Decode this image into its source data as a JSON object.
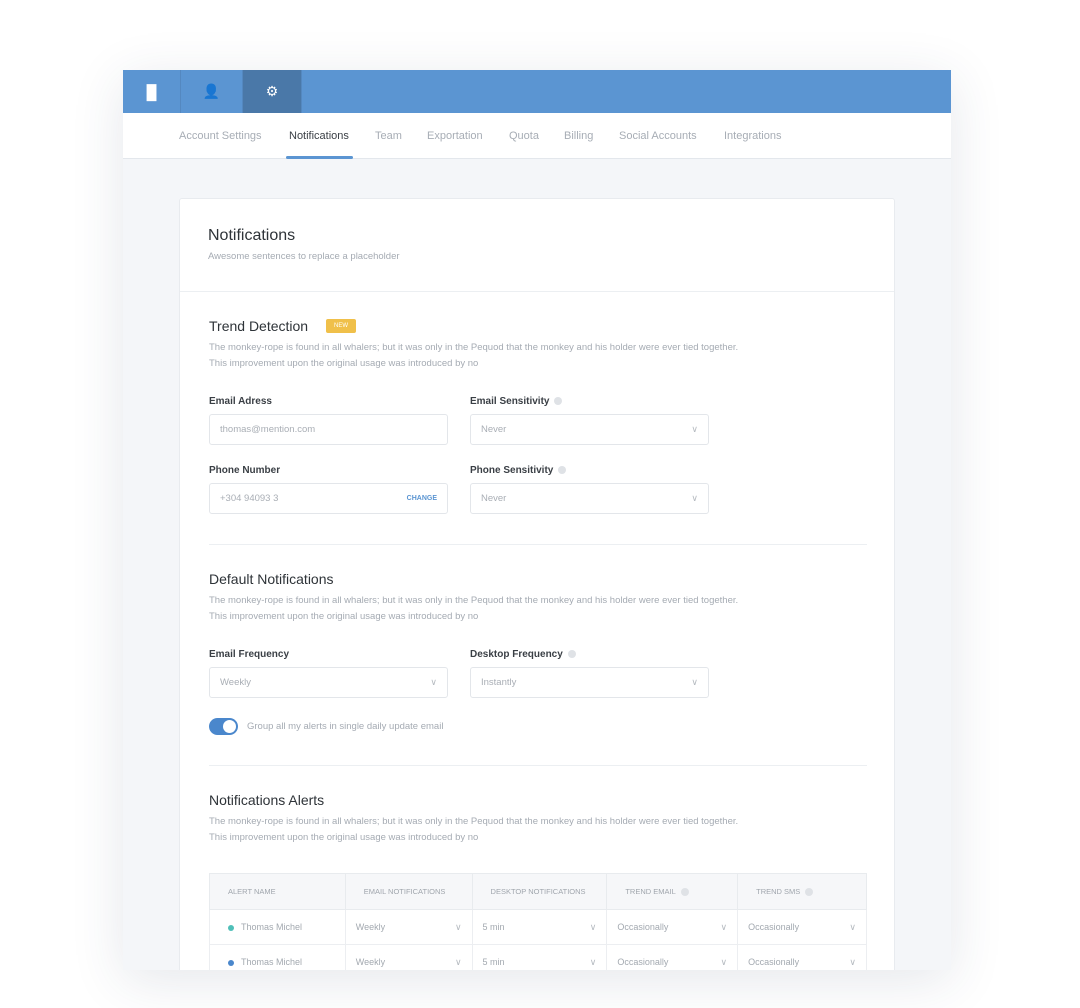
{
  "topbar": {
    "icons": [
      "bar-chart-icon",
      "users-icon",
      "gear-icon"
    ],
    "active": 2,
    "color": "#5b95d2"
  },
  "subnav": {
    "tabs": [
      "Account Settings",
      "Notifications",
      "Team",
      "Exportation",
      "Quota",
      "Billing",
      "Social Accounts",
      "Integrations"
    ],
    "active": 1
  },
  "header": {
    "title": "Notifications",
    "subtitle": "Awesome sentences to replace a placeholder"
  },
  "trend": {
    "title": "Trend Detection",
    "badge": "NEW",
    "desc1": "The monkey-rope is found in all whalers; but it was only in the Pequod that the monkey and his holder were ever tied together.",
    "desc2": "This improvement upon the original usage was introduced by no",
    "email_label": "Email Adress",
    "email_placeholder": "thomas@mention.com",
    "email_sens_label": "Email Sensitivity",
    "email_sens_value": "Never",
    "phone_label": "Phone Number",
    "phone_value": "+304 94093 3",
    "phone_change": "CHANGE",
    "phone_sens_label": "Phone Sensitivity",
    "phone_sens_value": "Never"
  },
  "defaults": {
    "title": "Default Notifications",
    "desc1": "The monkey-rope is found in all whalers; but it was only in the Pequod that the monkey and his holder were ever tied together.",
    "desc2": "This improvement upon the original usage was introduced by no",
    "email_freq_label": "Email Frequency",
    "email_freq_value": "Weekly",
    "desktop_freq_label": "Desktop Frequency",
    "desktop_freq_value": "Instantly",
    "toggle_label": "Group all my alerts in single daily update email",
    "toggle_on": true
  },
  "alerts": {
    "title": "Notifications Alerts",
    "desc1": "The monkey-rope is found in all whalers; but it was only in the Pequod that the monkey and his holder were ever tied together.",
    "desc2": "This improvement upon the original usage was introduced by no",
    "columns": [
      "ALERT NAME",
      "EMAIL NOTIFICATIONS",
      "DESKTOP NOTIFICATIONS",
      "TREND EMAIL",
      "TREND SMS"
    ],
    "rows": [
      {
        "name": "Thomas Michel",
        "dot": "#4fbfb8",
        "email": "Weekly",
        "desktop": "5 min",
        "trend_email": "Occasionally",
        "trend_sms": "Occasionally"
      },
      {
        "name": "Thomas Michel",
        "dot": "#4a87cc",
        "email": "Weekly",
        "desktop": "5 min",
        "trend_email": "Occasionally",
        "trend_sms": "Occasionally"
      }
    ]
  }
}
